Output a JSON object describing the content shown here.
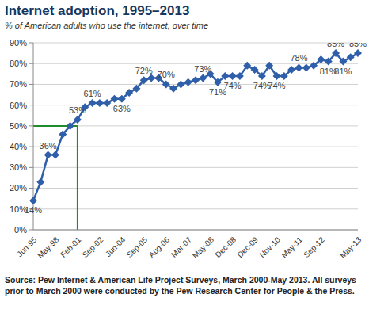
{
  "chart_data": {
    "type": "line",
    "title": "Internet adoption, 1995–2013",
    "subtitle": "% of American adults who use the internet, over time",
    "source": "Source: Pew Internet & American Life Project Surveys, March 2000-May 2013. All surveys prior to March 2000 were conducted by the Pew Research Center for People & the Press.",
    "categories": [
      "Jun-95",
      null,
      null,
      "May-98",
      null,
      null,
      "Feb-01",
      null,
      null,
      "Sep-02",
      null,
      null,
      "Jun-04",
      null,
      null,
      "Sep-05",
      null,
      null,
      "Aug-06",
      null,
      null,
      "Mar-07",
      null,
      null,
      "May-08",
      null,
      null,
      "Dec-08",
      null,
      null,
      "Dec-09",
      null,
      null,
      "Nov-10",
      null,
      null,
      "May-11",
      null,
      null,
      "Sep-12",
      null,
      null,
      null,
      null,
      "May-13"
    ],
    "values": [
      14,
      23,
      36,
      36,
      46,
      50,
      53,
      59,
      61,
      61,
      61,
      63,
      63,
      66,
      68,
      72,
      73,
      73,
      70,
      68,
      70,
      71,
      72,
      73,
      75,
      71,
      74,
      74,
      74,
      79,
      77,
      74,
      79,
      74,
      74,
      77,
      78,
      78,
      79,
      82,
      81,
      85,
      81,
      83,
      85
    ],
    "value_labels": [
      "14%",
      null,
      "36%",
      null,
      null,
      null,
      "53%",
      null,
      "61%",
      null,
      null,
      null,
      "63%",
      null,
      null,
      "72%",
      null,
      null,
      "70%",
      null,
      null,
      null,
      null,
      "73%",
      null,
      "71%",
      null,
      "74%",
      null,
      null,
      null,
      "74%",
      null,
      "74%",
      null,
      null,
      "78%",
      null,
      null,
      null,
      "81%",
      "85%",
      "81%",
      null,
      "85%"
    ],
    "data_labels": true,
    "color": "#2f5fa9",
    "marker": "diamond",
    "highlight": {
      "y": 50,
      "category": "Feb-01",
      "color": "#1e8c2a"
    },
    "ylim": [
      0,
      90
    ],
    "yticks": [
      {
        "value": 0,
        "label": "0%"
      },
      {
        "value": 10,
        "label": "10%"
      },
      {
        "value": 20,
        "label": "20%"
      },
      {
        "value": 30,
        "label": "30%"
      },
      {
        "value": 40,
        "label": "40%"
      },
      {
        "value": 50,
        "label": "50%"
      },
      {
        "value": 60,
        "label": "60%"
      },
      {
        "value": 70,
        "label": "70%"
      },
      {
        "value": 80,
        "label": "80%"
      },
      {
        "value": 90,
        "label": "90%"
      }
    ],
    "grid": true
  }
}
